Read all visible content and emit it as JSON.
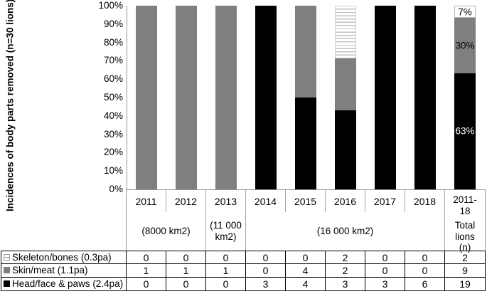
{
  "chart_data": {
    "type": "bar",
    "subtype": "100pct-stacked-vertical",
    "title": "",
    "xlabel": "",
    "ylabel": "Incidences of body parts removed (n=30 lions)",
    "ylim": [
      0,
      100
    ],
    "grid": false,
    "legend_position": "table-left-column",
    "y_ticks": [
      "100%",
      "90%",
      "80%",
      "70%",
      "60%",
      "50%",
      "40%",
      "30%",
      "20%",
      "10%",
      "0%"
    ],
    "categories": [
      "2011",
      "2012",
      "2013",
      "2014",
      "2015",
      "2016",
      "2017",
      "2018"
    ],
    "total_column_header": {
      "line1": "2011-18",
      "line2": "Total lions (n)"
    },
    "region_groups": [
      {
        "label": "(8000 km2)",
        "start": 0,
        "span": 2
      },
      {
        "label": "(11 000 km2)",
        "start": 2,
        "span": 1
      },
      {
        "label": "(16 000 km2)",
        "start": 3,
        "span": 5
      }
    ],
    "stack_order_bottom_to_top": [
      "Head/face & paws (2.4pa)",
      "Skin/meat (1.1pa)",
      "Skeleton/bones (0.3pa)"
    ],
    "series": [
      {
        "name": "Skeleton/bones (0.3pa)",
        "style": "hatched",
        "values": [
          0,
          0,
          0,
          0,
          0,
          2,
          0,
          0
        ],
        "total": 2,
        "total_pct_label": "7%",
        "total_label_color": "#000000"
      },
      {
        "name": "Skin/meat (1.1pa)",
        "style": "gray",
        "values": [
          1,
          1,
          1,
          0,
          4,
          2,
          0,
          0
        ],
        "total": 9,
        "total_pct_label": "30%",
        "total_label_color": "#000000"
      },
      {
        "name": "Head/face & paws (2.4pa)",
        "style": "black",
        "values": [
          0,
          0,
          0,
          3,
          4,
          3,
          3,
          6
        ],
        "total": 19,
        "total_pct_label": "63%",
        "total_label_color": "#ffffff"
      }
    ],
    "colors": {
      "black": "#000000",
      "gray": "#7f7f7f",
      "hatch_bg": "#ffffff",
      "hatch_line": "#c2c2c2"
    }
  }
}
